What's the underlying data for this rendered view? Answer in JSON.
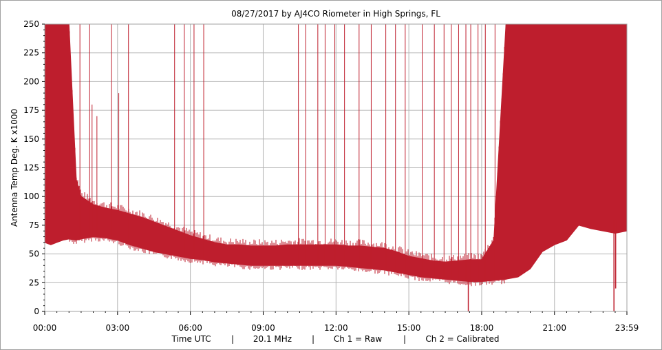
{
  "chart_data": {
    "type": "area",
    "title": "08/27/2017  by  AJ4CO Riometer  in  High Springs, FL",
    "xlabel": "",
    "ylabel": "Antenna Temp Deg. K x1000",
    "ylim": [
      0,
      250
    ],
    "xlim": [
      0,
      23.983
    ],
    "x_tick_labels": [
      "00:00",
      "03:00",
      "06:00",
      "09:00",
      "12:00",
      "15:00",
      "18:00",
      "21:00",
      "23:59"
    ],
    "x_tick_values": [
      0,
      3,
      6,
      9,
      12,
      15,
      18,
      21,
      23.983
    ],
    "y_tick_values": [
      0,
      25,
      50,
      75,
      100,
      125,
      150,
      175,
      200,
      225,
      250
    ],
    "grid": true,
    "legend": "none",
    "colors": {
      "series": "#be1e2d",
      "grid": "#b4b4b4"
    },
    "footer": {
      "items": [
        "Time UTC",
        "20.1 MHz",
        "Ch 1 = Raw",
        "Ch 2 = Calibrated"
      ],
      "separator": "|"
    },
    "series": [
      {
        "x": [
          0,
          0.25,
          0.5,
          0.75,
          1,
          1.3,
          1.5,
          2,
          2.5,
          3,
          3.5,
          4,
          4.5,
          5,
          5.5,
          6,
          6.5,
          7,
          7.5,
          8,
          8.5,
          9,
          9.5,
          10,
          10.5,
          11,
          11.5,
          12,
          12.5,
          13,
          13.5,
          14,
          14.5,
          15,
          15.5,
          16,
          16.5,
          17,
          17.5,
          18,
          18.5,
          19,
          19.5,
          20,
          20.5,
          21,
          21.5,
          22,
          22.5,
          23,
          23.5,
          23.983
        ],
        "low": [
          60,
          58,
          60,
          62,
          63,
          62,
          63,
          65,
          64,
          62,
          58,
          55,
          52,
          50,
          48,
          46,
          45,
          43,
          42,
          41,
          40,
          40,
          40,
          40,
          40,
          40,
          40,
          40,
          39,
          38,
          37,
          36,
          34,
          32,
          30,
          29,
          28,
          27,
          26,
          26,
          27,
          28,
          30,
          37,
          52,
          58,
          62,
          75,
          72,
          70,
          68,
          70
        ],
        "high": [
          250,
          250,
          250,
          250,
          250,
          115,
          100,
          93,
          90,
          88,
          85,
          82,
          78,
          74,
          70,
          66,
          63,
          60,
          58,
          58,
          57,
          57,
          57,
          58,
          58,
          58,
          58,
          58,
          57,
          57,
          56,
          55,
          52,
          48,
          46,
          44,
          43,
          44,
          45,
          45,
          62,
          250,
          250,
          250,
          250,
          250,
          250,
          250,
          250,
          250,
          250,
          250
        ],
        "spikes": [
          {
            "x": 1.45,
            "low": 0,
            "y": 250
          },
          {
            "x": 1.85,
            "y": 250
          },
          {
            "x": 1.95,
            "y": 180
          },
          {
            "x": 2.15,
            "y": 170
          },
          {
            "x": 2.75,
            "y": 250
          },
          {
            "x": 3.05,
            "y": 190
          },
          {
            "x": 3.45,
            "y": 250
          },
          {
            "x": 5.35,
            "y": 250
          },
          {
            "x": 5.75,
            "y": 250
          },
          {
            "x": 6.15,
            "y": 250
          },
          {
            "x": 6.55,
            "y": 250
          },
          {
            "x": 10.45,
            "y": 250
          },
          {
            "x": 10.75,
            "y": 250
          },
          {
            "x": 11.25,
            "y": 250
          },
          {
            "x": 11.55,
            "y": 250
          },
          {
            "x": 11.95,
            "y": 250
          },
          {
            "x": 12.35,
            "y": 250
          },
          {
            "x": 12.95,
            "y": 250
          },
          {
            "x": 13.45,
            "y": 250
          },
          {
            "x": 14.05,
            "y": 250
          },
          {
            "x": 14.45,
            "y": 250
          },
          {
            "x": 14.85,
            "y": 250
          },
          {
            "x": 15.55,
            "y": 250
          },
          {
            "x": 16.05,
            "y": 250
          },
          {
            "x": 16.45,
            "y": 250
          },
          {
            "x": 16.75,
            "y": 250
          },
          {
            "x": 17.05,
            "y": 250
          },
          {
            "x": 17.35,
            "y": 250
          },
          {
            "x": 17.55,
            "y": 250
          },
          {
            "x": 17.85,
            "y": 250
          },
          {
            "x": 18.15,
            "y": 250
          },
          {
            "x": 18.55,
            "y": 250
          }
        ],
        "dropouts": [
          {
            "x": 17.45,
            "y": 0
          },
          {
            "x": 23.45,
            "y": 0
          },
          {
            "x": 23.52,
            "y": 20
          }
        ]
      }
    ]
  }
}
